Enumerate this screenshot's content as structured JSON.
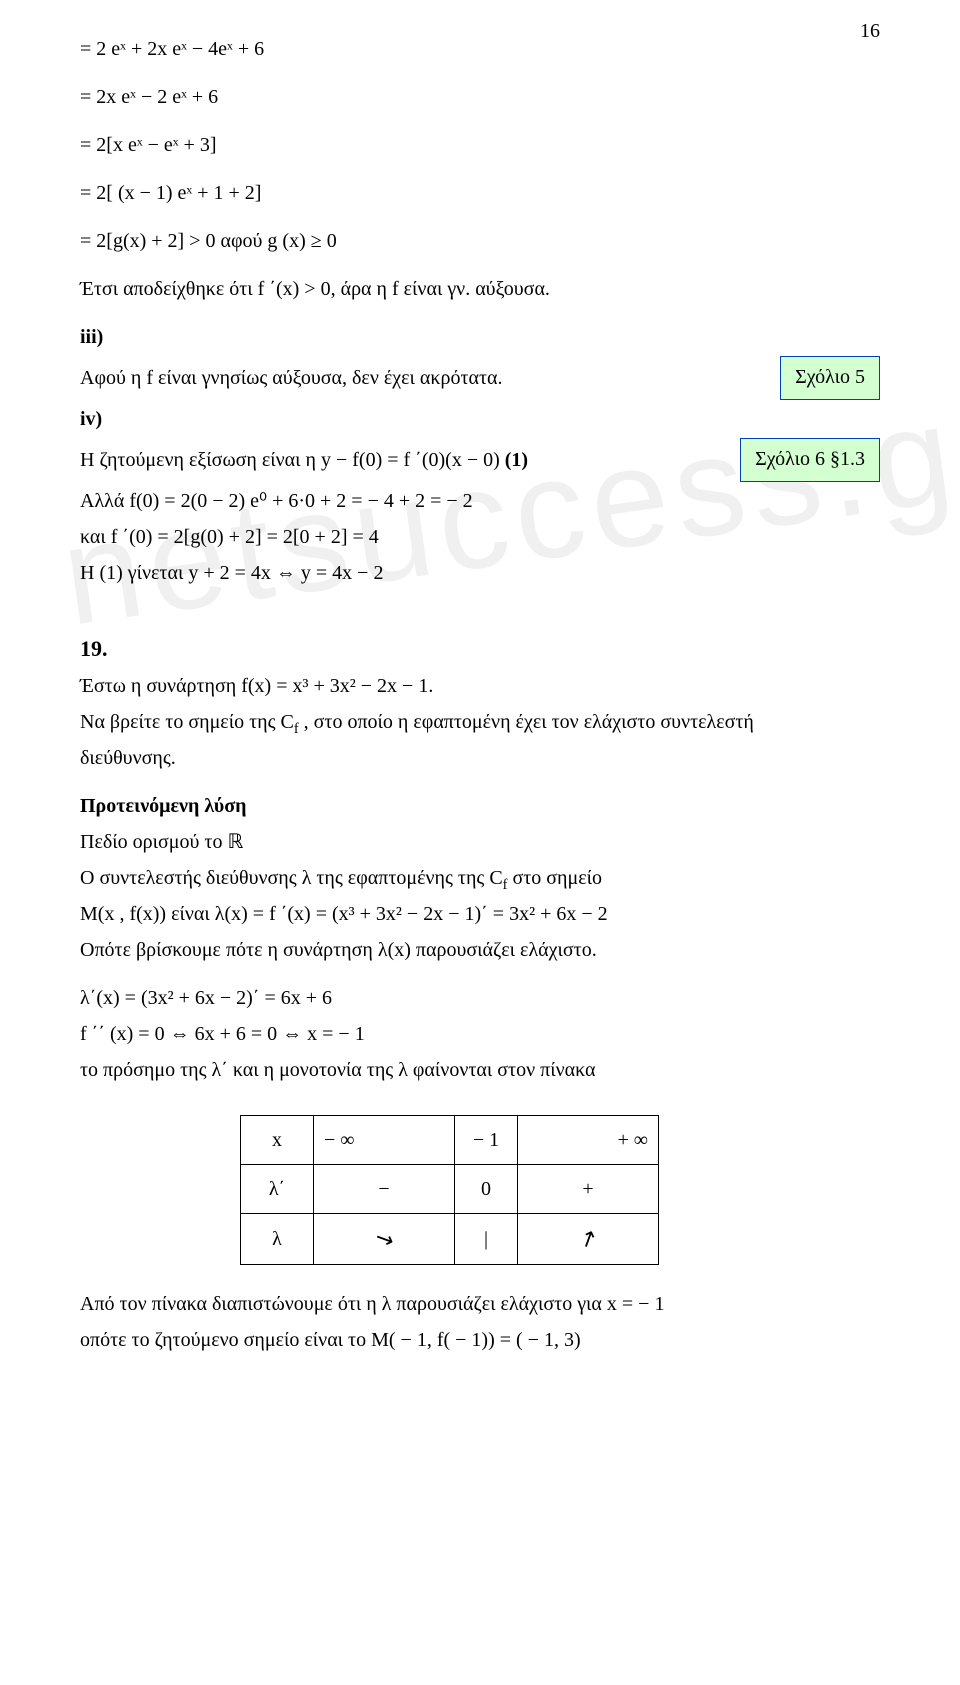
{
  "page_number": "16",
  "watermark": "netsuccess.gr",
  "eq_block": {
    "l1": "= 2 eˣ + 2x eˣ − 4eˣ + 6",
    "l2": "= 2x eˣ − 2 eˣ + 6",
    "l3": "= 2[x eˣ − eˣ + 3]",
    "l4": "= 2[ (x − 1) eˣ + 1 + 2]",
    "l5": "= 2[g(x) + 2]  > 0    αφού  g (x)  ≥ 0"
  },
  "text1": "Έτσι αποδείχθηκε ότι  f ΄(x) > 0,   άρα η  f  είναι γν. αύξουσα.",
  "iii_label": "iii)",
  "iii_line": "Αφού η f είναι γνησίως αύξουσα,  δεν έχει ακρότατα.",
  "iv_label": "iv)",
  "iv_line1_text": "Η ζητούμενη εξίσωση είναι η   y − f(0) = f ΄(0)(x − 0)     ",
  "iv_line1_tag": "(1)",
  "iv_line2": "Αλλά   f(0) = 2(0 − 2) e⁰ + 6·0 + 2  =  − 4 + 2 = − 2",
  "iv_line3": "   και   f ΄(0) = 2[g(0) + 2]  = 2[0 + 2]  = 4",
  "iv_line4": "Η  (1)  γίνεται  y + 2 = 4x    ⇔    y = 4x − 2",
  "comment5": "Σχόλιο 5",
  "comment6": "Σχόλιο  6  §1.3",
  "prob19_num": "19.",
  "prob19_l1": "Έστω η συνάρτηση   f(x) = x³ + 3x² − 2x − 1.",
  "prob19_l2": "Να βρείτε το σημείο της  C",
  "prob19_l2_sub": "f",
  "prob19_l2b": " ,  στο οποίο η εφαπτομένη έχει τον ελάχιστο συντελεστή",
  "prob19_l3": "διεύθυνσης.",
  "sol_heading": "Προτεινόμενη  λύση",
  "sol_l1_a": "Πεδίο ορισμού  το   ",
  "sol_l1_R": "ℝ",
  "sol_l2a": "Ο συντελεστής διεύθυνσης  λ της εφαπτομένης  της  C",
  "sol_l2_sub": "f",
  "sol_l2b": "   στο σημείο",
  "sol_l3": "M(x , f(x))   είναι   λ(x) = f ΄(x) = (x³ + 3x² − 2x − 1)΄ =  3x² + 6x − 2",
  "sol_l4": "Οπότε βρίσκουμε πότε η συνάρτηση  λ(x)  παρουσιάζει ελάχιστο.",
  "sol_l5": "λ΄(x) =  (3x² + 6x − 2)΄  =  6x + 6",
  "sol_l6": "f ΄΄ (x) = 0   ⇔     6x + 6 = 0   ⇔     x = − 1",
  "sol_l7": "το πρόσημο της  λ΄ και η μονοτονία της  λ  φαίνονται στον πίνακα",
  "table": {
    "r1c1": "x",
    "r1c2": "− ∞",
    "r1c3": "− 1",
    "r1c4": "+ ∞",
    "r2c1": "λ΄",
    "r2c2": "−",
    "r2c3": "0",
    "r2c4": "+",
    "r3c1": "λ",
    "r3c2": "↘",
    "r3c3": "|",
    "r3c4": "↗"
  },
  "final1": "Από τον πίνακα  διαπιστώνουμε ότι  η  λ  παρουσιάζει  ελάχιστο για  x = − 1",
  "final2": "οπότε το ζητούμενο σημείο είναι το  M( − 1,  f( − 1)) = ( − 1,  3)",
  "colors": {
    "box_border": "#0040b0",
    "box_bg": "#d4ffd0",
    "text": "#000000",
    "bg": "#ffffff",
    "watermark": "rgba(0,0,0,0.06)"
  }
}
